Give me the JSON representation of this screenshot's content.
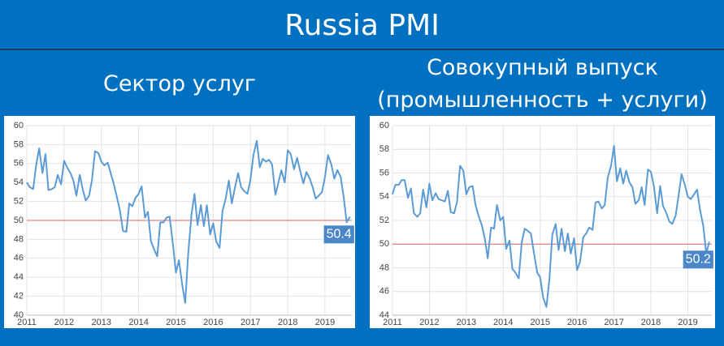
{
  "page_title": "Russia PMI",
  "chart_data": [
    {
      "type": "line",
      "title": "Сектор услуг",
      "color": "#5b9bd5",
      "reference_line": 50,
      "reference_color": "#e06666",
      "end_label": "50.4",
      "grid": true,
      "xlim": [
        2011,
        2019.72
      ],
      "xticks": [
        2011,
        2012,
        2013,
        2014,
        2015,
        2016,
        2017,
        2018,
        2019
      ],
      "ylim": [
        40,
        60
      ],
      "yticks": [
        40,
        42,
        44,
        46,
        48,
        50,
        52,
        54,
        56,
        58,
        60
      ],
      "x": [
        2011,
        2011.08,
        2011.17,
        2011.25,
        2011.33,
        2011.42,
        2011.5,
        2011.58,
        2011.67,
        2011.75,
        2011.83,
        2011.92,
        2012,
        2012.08,
        2012.17,
        2012.25,
        2012.33,
        2012.42,
        2012.5,
        2012.58,
        2012.67,
        2012.75,
        2012.83,
        2012.92,
        2013,
        2013.08,
        2013.17,
        2013.25,
        2013.33,
        2013.42,
        2013.5,
        2013.58,
        2013.67,
        2013.75,
        2013.83,
        2013.92,
        2014,
        2014.08,
        2014.17,
        2014.25,
        2014.33,
        2014.42,
        2014.5,
        2014.58,
        2014.67,
        2014.75,
        2014.83,
        2014.92,
        2015,
        2015.08,
        2015.17,
        2015.25,
        2015.33,
        2015.42,
        2015.5,
        2015.58,
        2015.67,
        2015.75,
        2015.83,
        2015.92,
        2016,
        2016.08,
        2016.17,
        2016.25,
        2016.33,
        2016.42,
        2016.5,
        2016.58,
        2016.67,
        2016.75,
        2016.83,
        2016.92,
        2017,
        2017.08,
        2017.17,
        2017.25,
        2017.33,
        2017.42,
        2017.5,
        2017.58,
        2017.67,
        2017.75,
        2017.83,
        2017.92,
        2018,
        2018.08,
        2018.17,
        2018.25,
        2018.33,
        2018.42,
        2018.5,
        2018.58,
        2018.67,
        2018.75,
        2018.83,
        2018.92,
        2019,
        2019.08,
        2019.17,
        2019.25,
        2019.33,
        2019.42,
        2019.5,
        2019.58,
        2019.67
      ],
      "values": [
        54,
        53.5,
        53.3,
        55.8,
        57.6,
        55,
        57,
        53.2,
        53.3,
        53.5,
        54.8,
        53.8,
        56.3,
        55.6,
        55,
        54.2,
        52.6,
        54.8,
        53.3,
        52.1,
        52.6,
        54.3,
        57.3,
        57.1,
        56.2,
        55.8,
        56.1,
        55,
        53.9,
        52.4,
        51,
        48.9,
        48.8,
        51.8,
        51.5,
        52.4,
        52.8,
        53.6,
        50.3,
        50.9,
        47.8,
        46.9,
        46.2,
        49.8,
        49.8,
        50.3,
        50.4,
        47.5,
        44.5,
        45.8,
        43.2,
        41.3,
        46.5,
        50.7,
        52.8,
        49.5,
        51.6,
        49.4,
        51.6,
        48.5,
        49.7,
        47.8,
        47.1,
        51,
        52.2,
        54.2,
        51.8,
        53.4,
        55,
        53.5,
        53.1,
        52.8,
        54.3,
        56.9,
        58.4,
        55.6,
        56.5,
        56.2,
        56.4,
        55.9,
        52.7,
        54,
        55.3,
        54,
        57.4,
        57,
        55.4,
        56.6,
        55.3,
        53.9,
        55.1,
        54.5,
        53.5,
        52.3,
        52.6,
        53,
        54.6,
        56.9,
        55.9,
        54.4,
        55.3,
        54.6,
        52.5,
        49.8,
        50.4
      ]
    },
    {
      "type": "line",
      "title": "Совокупный выпуск (промышленность + услуги)",
      "color": "#5b9bd5",
      "reference_line": 50,
      "reference_color": "#e06666",
      "end_label": "50.2",
      "grid": true,
      "xlim": [
        2011,
        2019.65
      ],
      "xticks": [
        2011,
        2012,
        2013,
        2014,
        2015,
        2016,
        2017,
        2018,
        2019
      ],
      "ylim": [
        44,
        60
      ],
      "yticks": [
        44,
        46,
        48,
        50,
        52,
        54,
        56,
        58,
        60
      ],
      "x": [
        2011,
        2011.08,
        2011.17,
        2011.25,
        2011.33,
        2011.42,
        2011.5,
        2011.58,
        2011.67,
        2011.75,
        2011.83,
        2011.92,
        2012,
        2012.08,
        2012.17,
        2012.25,
        2012.33,
        2012.42,
        2012.5,
        2012.58,
        2012.67,
        2012.75,
        2012.83,
        2012.92,
        2013,
        2013.08,
        2013.17,
        2013.25,
        2013.33,
        2013.42,
        2013.5,
        2013.58,
        2013.67,
        2013.75,
        2013.83,
        2013.92,
        2014,
        2014.08,
        2014.17,
        2014.25,
        2014.33,
        2014.42,
        2014.5,
        2014.58,
        2014.67,
        2014.75,
        2014.83,
        2014.92,
        2015,
        2015.08,
        2015.17,
        2015.25,
        2015.33,
        2015.42,
        2015.5,
        2015.58,
        2015.67,
        2015.75,
        2015.83,
        2015.92,
        2016,
        2016.08,
        2016.17,
        2016.25,
        2016.33,
        2016.42,
        2016.5,
        2016.58,
        2016.67,
        2016.75,
        2016.83,
        2016.92,
        2017,
        2017.08,
        2017.17,
        2017.25,
        2017.33,
        2017.42,
        2017.5,
        2017.58,
        2017.67,
        2017.75,
        2017.83,
        2017.92,
        2018,
        2018.08,
        2018.17,
        2018.25,
        2018.33,
        2018.42,
        2018.5,
        2018.58,
        2018.67,
        2018.75,
        2018.83,
        2018.92,
        2019,
        2019.08,
        2019.17,
        2019.25,
        2019.33,
        2019.42,
        2019.5,
        2019.58
      ],
      "values": [
        54.2,
        55,
        55,
        55.4,
        55.4,
        53.9,
        54.7,
        52.6,
        52.3,
        52.6,
        54.6,
        53.1,
        55.1,
        53.7,
        54.3,
        53.8,
        53.7,
        53.6,
        54.5,
        52.7,
        52.6,
        53.6,
        56.6,
        56.2,
        54.2,
        54.8,
        54.9,
        53.3,
        52.4,
        51.6,
        50.5,
        48.8,
        51.4,
        51.3,
        53.3,
        52,
        52.3,
        49.6,
        50.3,
        47.9,
        47.6,
        47.1,
        50.1,
        51.3,
        51.1,
        50.9,
        49.3,
        47.6,
        47.2,
        45.5,
        44.7,
        47,
        50.8,
        51.7,
        49.5,
        51.3,
        49.4,
        50.9,
        49.2,
        50.5,
        47.8,
        48.5,
        50.6,
        50.9,
        51.4,
        51.2,
        53.5,
        53.6,
        53,
        53.3,
        55.6,
        56.6,
        58.3,
        55.3,
        56.4,
        55.1,
        56.2,
        55.2,
        54.8,
        53.4,
        53.7,
        54.8,
        53.3,
        56.3,
        56.1,
        54.9,
        52.6,
        54.9,
        53.2,
        52.6,
        51.9,
        51.7,
        52.4,
        54.1,
        55.9,
        55,
        54,
        53.8,
        54.2,
        54.6,
        52.9,
        51.5,
        49.2,
        50.2
      ]
    }
  ]
}
